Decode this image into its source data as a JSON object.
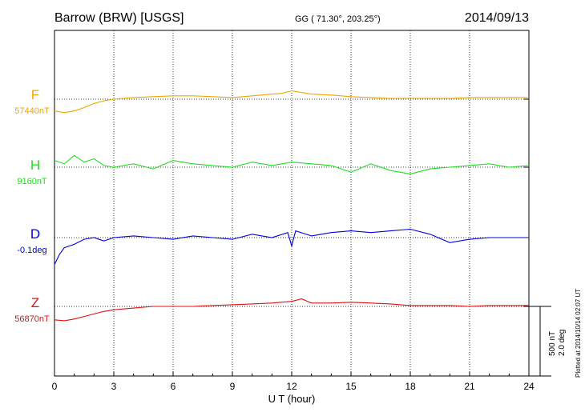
{
  "header": {
    "station": "Barrow (BRW)  [USGS]",
    "coords": "GG ( 71.30°, 203.25°)",
    "date": "2014/09/13"
  },
  "footer": {
    "plotted": "Plotted at 2014/10/14 02:07 UT"
  },
  "scale_bar": {
    "nt": "500 nT",
    "deg": "2.0 deg"
  },
  "chart_data": {
    "type": "line",
    "title": "Barrow (BRW)  [USGS]",
    "xlabel": "U T (hour)",
    "xlim": [
      0,
      24
    ],
    "x_ticks": [
      0,
      3,
      6,
      9,
      12,
      15,
      18,
      21,
      24
    ],
    "grid": true,
    "series": [
      {
        "name": "F",
        "baseline_label": "57440nT",
        "color": "#f0a500",
        "x": [
          0,
          0.5,
          1,
          1.5,
          2,
          2.5,
          3,
          4,
          5,
          6,
          7,
          8,
          9,
          10,
          11,
          11.5,
          12,
          12.5,
          13,
          14,
          15,
          16,
          17,
          18,
          19,
          20,
          21,
          22,
          23,
          24
        ],
        "y": [
          -70,
          -80,
          -70,
          -50,
          -25,
          -10,
          0,
          10,
          15,
          20,
          20,
          15,
          10,
          20,
          30,
          35,
          50,
          40,
          30,
          25,
          15,
          10,
          5,
          5,
          5,
          5,
          10,
          10,
          10,
          10
        ]
      },
      {
        "name": "H",
        "baseline_label": "9160nT",
        "color": "#22dd22",
        "x": [
          0,
          0.5,
          1,
          1.5,
          2,
          2.5,
          3,
          4,
          5,
          6,
          7,
          8,
          9,
          10,
          11,
          12,
          13,
          14,
          15,
          16,
          17,
          18,
          19,
          20,
          21,
          22,
          23,
          24
        ],
        "y": [
          40,
          20,
          70,
          30,
          50,
          10,
          0,
          20,
          -10,
          40,
          20,
          10,
          0,
          30,
          10,
          30,
          20,
          10,
          -30,
          20,
          -20,
          -40,
          -10,
          0,
          10,
          20,
          0,
          10
        ]
      },
      {
        "name": "D",
        "baseline_label": "-0.1deg",
        "color": "#0000dd",
        "x": [
          0,
          0.25,
          0.5,
          1,
          1.5,
          2,
          2.5,
          3,
          4,
          5,
          6,
          7,
          8,
          9,
          10,
          11,
          11.8,
          12,
          12.2,
          13,
          14,
          15,
          16,
          17,
          18,
          19,
          20,
          21,
          22,
          23,
          24
        ],
        "y": [
          -160,
          -100,
          -60,
          -40,
          -10,
          0,
          -20,
          0,
          10,
          0,
          -10,
          10,
          0,
          -10,
          20,
          0,
          30,
          -50,
          40,
          10,
          30,
          40,
          30,
          40,
          50,
          20,
          -30,
          -10,
          0,
          0,
          0
        ]
      },
      {
        "name": "Z",
        "baseline_label": "56870nT",
        "color": "#e01010",
        "x": [
          0,
          0.5,
          1,
          1.5,
          2,
          2.5,
          3,
          4,
          5,
          6,
          7,
          8,
          9,
          10,
          11,
          12,
          12.5,
          13,
          14,
          15,
          16,
          17,
          18,
          19,
          20,
          21,
          22,
          23,
          24
        ],
        "y": [
          -80,
          -85,
          -75,
          -60,
          -45,
          -30,
          -20,
          -10,
          0,
          0,
          0,
          5,
          10,
          15,
          20,
          30,
          45,
          20,
          20,
          25,
          20,
          15,
          5,
          5,
          5,
          0,
          5,
          5,
          5
        ]
      }
    ]
  }
}
